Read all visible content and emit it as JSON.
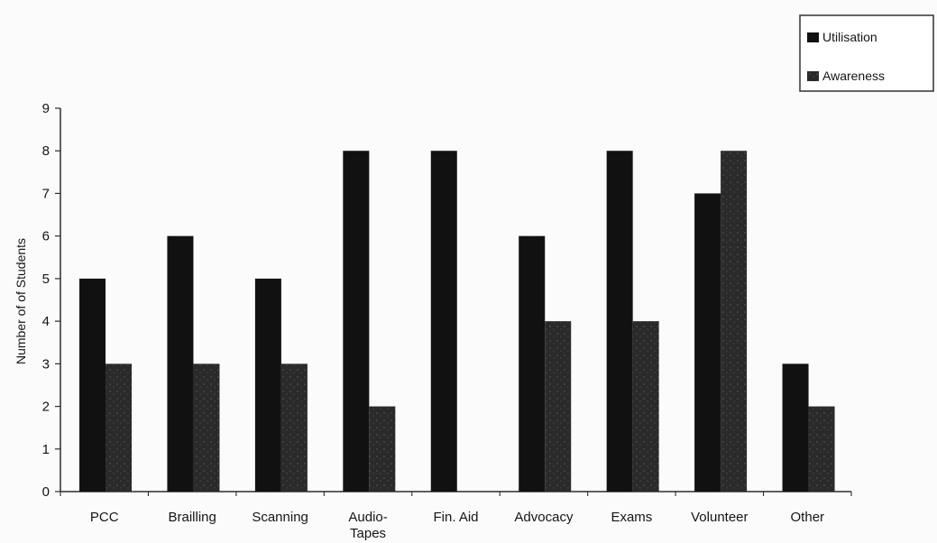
{
  "chart_data": {
    "type": "bar",
    "categories": [
      "PCC",
      "Brailling",
      "Scanning",
      "Audio-Tapes",
      "Fin. Aid",
      "Advocacy",
      "Exams",
      "Volunteer",
      "Other"
    ],
    "category_lines": [
      [
        "PCC"
      ],
      [
        "Brailling"
      ],
      [
        "Scanning"
      ],
      [
        "Audio-",
        "Tapes"
      ],
      [
        "Fin. Aid"
      ],
      [
        "Advocacy"
      ],
      [
        "Exams"
      ],
      [
        "Volunteer"
      ],
      [
        "Other"
      ]
    ],
    "series": [
      {
        "name": "Utilisation",
        "values": [
          5,
          6,
          5,
          8,
          8,
          6,
          8,
          7,
          3
        ],
        "color": "#111111"
      },
      {
        "name": "Awareness",
        "values": [
          3,
          3,
          3,
          2,
          0,
          4,
          4,
          8,
          2
        ],
        "color": "#2c2c2c"
      }
    ],
    "ylabel": "Number of of Students",
    "xlabel": "",
    "ylim": [
      0,
      9
    ],
    "yticks": [
      "0",
      "1",
      "2",
      "3",
      "4",
      "5",
      "6",
      "7",
      "8",
      "9"
    ],
    "grid": false,
    "legend_position": "top-right"
  }
}
